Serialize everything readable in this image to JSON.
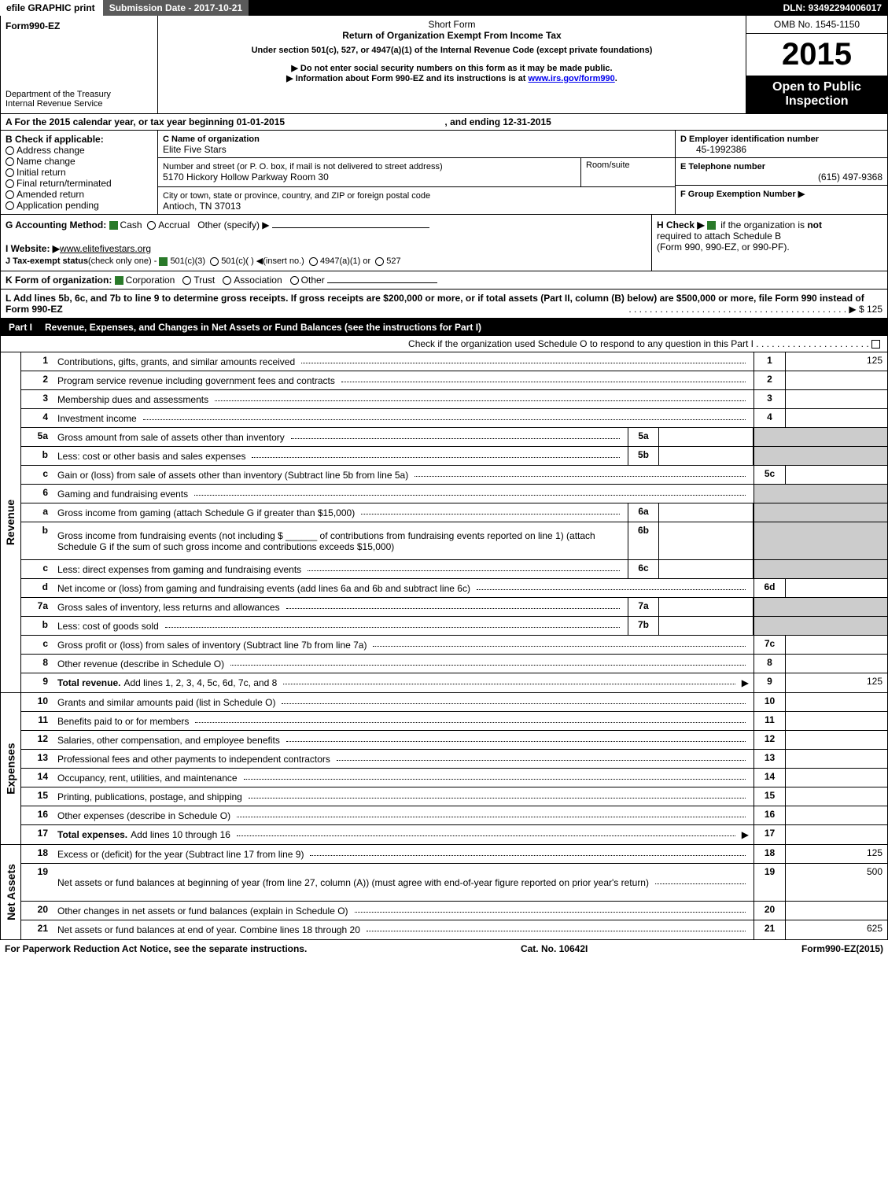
{
  "topbar": {
    "efile": "efile GRAPHIC print",
    "subdate_label": "Submission Date - 2017-10-21",
    "dln": "DLN: 93492294006017"
  },
  "header": {
    "form_name": "Form990-EZ",
    "dept": "Department of the Treasury",
    "irs": "Internal Revenue Service",
    "short_form": "Short Form",
    "title": "Return of Organization Exempt From Income Tax",
    "subtitle": "Under section 501(c), 527, or 4947(a)(1) of the Internal Revenue Code (except private foundations)",
    "warn1": "Do not enter social security numbers on this form as it may be made public.",
    "warn2_pre": "Information about Form 990-EZ and its instructions is at ",
    "warn2_link": "www.irs.gov/form990",
    "omb": "OMB No. 1545-1150",
    "year": "2015",
    "open1": "Open to Public",
    "open2": "Inspection"
  },
  "rowA": {
    "pre": "A  For the 2015 calendar year, or tax year beginning ",
    "begin": "01-01-2015",
    "mid": " , and ending ",
    "end": "12-31-2015"
  },
  "colB": {
    "header": "B  Check if applicable:",
    "items": [
      "Address change",
      "Name change",
      "Initial return",
      "Final return/terminated",
      "Amended return",
      "Application pending"
    ]
  },
  "colC": {
    "name_label": "C Name of organization",
    "name": "Elite Five Stars",
    "addr_label": "Number and street (or P. O. box, if mail is not delivered to street address)",
    "addr": "5170 Hickory Hollow Parkway Room 30",
    "room_label": "Room/suite",
    "city_label": "City or town, state or province, country, and ZIP or foreign postal code",
    "city": "Antioch, TN  37013"
  },
  "colDEF": {
    "d_label": "D Employer identification number",
    "d_val": "45-1992386",
    "e_label": "E Telephone number",
    "e_val": "(615) 497-9368",
    "f_label": "F Group Exemption Number  ▶"
  },
  "gh": {
    "g_pre": "G Accounting Method:  ",
    "g_cash": "Cash",
    "g_accrual": "Accrual",
    "g_other": "Other (specify) ▶",
    "i_pre": "I Website: ▶",
    "i_val": "www.elitefivestars.org",
    "j_pre": "J Tax-exempt status",
    "j_note": "(check only one) - ",
    "j_1": "501(c)(3)",
    "j_2": "501(c)(  ) ◀(insert no.)",
    "j_3": "4947(a)(1) or",
    "j_4": "527",
    "h_pre": "H  Check ▶ ",
    "h_post": " if the organization is ",
    "h_not": "not",
    "h_line2": "required to attach Schedule B",
    "h_line3": "(Form 990, 990-EZ, or 990-PF)."
  },
  "rowK": {
    "pre": "K Form of organization:  ",
    "opts": [
      "Corporation",
      "Trust",
      "Association",
      "Other"
    ]
  },
  "rowL": {
    "text": "L Add lines 5b, 6c, and 7b to line 9 to determine gross receipts. If gross receipts are $200,000 or more, or if total assets (Part II, column (B) below) are $500,000 or more, file Form 990 instead of Form 990-EZ",
    "dots_tail": "▶ $ 125"
  },
  "part1": {
    "label": "Part I",
    "title": "Revenue, Expenses, and Changes in Net Assets or Fund Balances (see the instructions for Part I)",
    "check": "Check if the organization used Schedule O to respond to any question in this Part I"
  },
  "sections": {
    "revenue_label": "Revenue",
    "expenses_label": "Expenses",
    "netassets_label": "Net Assets"
  },
  "revenue_lines": [
    {
      "n": "1",
      "d": "Contributions, gifts, grants, and similar amounts received",
      "rnum": "1",
      "rval": "125"
    },
    {
      "n": "2",
      "d": "Program service revenue including government fees and contracts",
      "rnum": "2",
      "rval": ""
    },
    {
      "n": "3",
      "d": "Membership dues and assessments",
      "rnum": "3",
      "rval": ""
    },
    {
      "n": "4",
      "d": "Investment income",
      "rnum": "4",
      "rval": ""
    },
    {
      "n": "5a",
      "d": "Gross amount from sale of assets other than inventory",
      "mid": "5a",
      "grey": true
    },
    {
      "n": "b",
      "d": "Less: cost or other basis and sales expenses",
      "mid": "5b",
      "grey": true
    },
    {
      "n": "c",
      "d": "Gain or (loss) from sale of assets other than inventory (Subtract line 5b from line 5a)",
      "rnum": "5c",
      "rval": ""
    },
    {
      "n": "6",
      "d": "Gaming and fundraising events",
      "grey": true,
      "nobox": true
    },
    {
      "n": "a",
      "d": "Gross income from gaming (attach Schedule G if greater than $15,000)",
      "mid": "6a",
      "grey": true
    },
    {
      "n": "b",
      "d_html": "Gross income from fundraising events (not including $ ______ of contributions from fundraising events reported on line 1) (attach Schedule G if the sum of such gross income and contributions exceeds $15,000)",
      "mid": "6b",
      "grey": true,
      "tall": true
    },
    {
      "n": "c",
      "d": "Less: direct expenses from gaming and fundraising events",
      "mid": "6c",
      "grey": true
    },
    {
      "n": "d",
      "d": "Net income or (loss) from gaming and fundraising events (add lines 6a and 6b and subtract line 6c)",
      "rnum": "6d",
      "rval": ""
    },
    {
      "n": "7a",
      "d": "Gross sales of inventory, less returns and allowances",
      "mid": "7a",
      "grey": true
    },
    {
      "n": "b",
      "d": "Less: cost of goods sold",
      "mid": "7b",
      "grey": true
    },
    {
      "n": "c",
      "d": "Gross profit or (loss) from sales of inventory (Subtract line 7b from line 7a)",
      "rnum": "7c",
      "rval": ""
    },
    {
      "n": "8",
      "d": "Other revenue (describe in Schedule O)",
      "rnum": "8",
      "rval": ""
    },
    {
      "n": "9",
      "d_bold": "Total revenue.",
      "d_tail": " Add lines 1, 2, 3, 4, 5c, 6d, 7c, and 8",
      "arrow": true,
      "rnum": "9",
      "rval": "125"
    }
  ],
  "expense_lines": [
    {
      "n": "10",
      "d": "Grants and similar amounts paid (list in Schedule O)",
      "rnum": "10",
      "rval": ""
    },
    {
      "n": "11",
      "d": "Benefits paid to or for members",
      "rnum": "11",
      "rval": ""
    },
    {
      "n": "12",
      "d": "Salaries, other compensation, and employee benefits",
      "rnum": "12",
      "rval": ""
    },
    {
      "n": "13",
      "d": "Professional fees and other payments to independent contractors",
      "rnum": "13",
      "rval": ""
    },
    {
      "n": "14",
      "d": "Occupancy, rent, utilities, and maintenance",
      "rnum": "14",
      "rval": ""
    },
    {
      "n": "15",
      "d": "Printing, publications, postage, and shipping",
      "rnum": "15",
      "rval": ""
    },
    {
      "n": "16",
      "d": "Other expenses (describe in Schedule O)",
      "rnum": "16",
      "rval": ""
    },
    {
      "n": "17",
      "d_bold": "Total expenses.",
      "d_tail": " Add lines 10 through 16",
      "arrow": true,
      "rnum": "17",
      "rval": ""
    }
  ],
  "netasset_lines": [
    {
      "n": "18",
      "d": "Excess or (deficit) for the year (Subtract line 17 from line 9)",
      "rnum": "18",
      "rval": "125"
    },
    {
      "n": "19",
      "d": "Net assets or fund balances at beginning of year (from line 27, column (A)) (must agree with end-of-year figure reported on prior year's return)",
      "rnum": "19",
      "rval": "500",
      "tall": true
    },
    {
      "n": "20",
      "d": "Other changes in net assets or fund balances (explain in Schedule O)",
      "rnum": "20",
      "rval": ""
    },
    {
      "n": "21",
      "d": "Net assets or fund balances at end of year. Combine lines 18 through 20",
      "rnum": "21",
      "rval": "625"
    }
  ],
  "footer": {
    "left": "For Paperwork Reduction Act Notice, see the separate instructions.",
    "mid": "Cat. No. 10642I",
    "right_pre": "Form",
    "right_bold": "990-EZ",
    "right_post": "(2015)"
  }
}
